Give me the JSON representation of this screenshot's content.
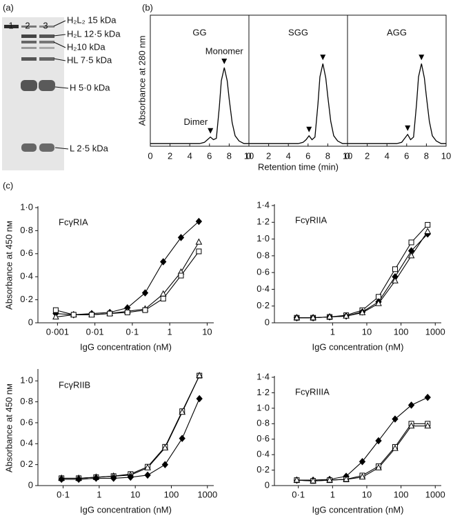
{
  "panel_labels": [
    "(a)",
    "(b)",
    "(c)"
  ],
  "gel": {
    "lanes": [
      "1",
      "2",
      "3"
    ],
    "bands": [
      "H₂L₂ 15 kDa",
      "H₂L 12·5 kDa",
      "H₂10 kDa",
      "HL 7·5 kDa",
      "H 5·0 kDa",
      "L 2·5 kDa"
    ]
  },
  "chart_data": [
    {
      "type": "line",
      "ylabel": "Absorbance at 280 nm",
      "xlabel": "Retention time (min)",
      "annotations": [
        "Dimer",
        "Monomer"
      ],
      "color": "#000000",
      "x": [
        0,
        1,
        2,
        3,
        4,
        5,
        5.5,
        5.8,
        6.1,
        6.4,
        6.7,
        7,
        7.2,
        7.5,
        7.8,
        8,
        8.3,
        8.6,
        9,
        9.5,
        10
      ],
      "xlim": [
        0,
        10
      ],
      "xticks": [
        0,
        2,
        4,
        6,
        8,
        10
      ],
      "ylim": [
        0,
        1
      ],
      "panels": [
        {
          "title": "GG",
          "values": [
            0.02,
            0.02,
            0.02,
            0.02,
            0.02,
            0.02,
            0.03,
            0.05,
            0.07,
            0.05,
            0.06,
            0.3,
            0.5,
            0.6,
            0.5,
            0.36,
            0.18,
            0.08,
            0.04,
            0.02,
            0.02
          ]
        },
        {
          "title": "SGG",
          "values": [
            0.02,
            0.02,
            0.02,
            0.02,
            0.02,
            0.02,
            0.03,
            0.05,
            0.08,
            0.05,
            0.07,
            0.32,
            0.53,
            0.63,
            0.52,
            0.38,
            0.19,
            0.08,
            0.04,
            0.02,
            0.02
          ]
        },
        {
          "title": "AGG",
          "values": [
            0.02,
            0.02,
            0.02,
            0.02,
            0.02,
            0.02,
            0.03,
            0.06,
            0.09,
            0.05,
            0.07,
            0.32,
            0.53,
            0.63,
            0.52,
            0.38,
            0.19,
            0.08,
            0.04,
            0.02,
            0.02
          ]
        }
      ]
    },
    {
      "type": "line",
      "title": "FcγRIA",
      "ylabel": "Absorbance at 450 nм",
      "xlabel": "IgG concentration (nM)",
      "xscale": "log",
      "x": [
        0.0009,
        0.0027,
        0.0082,
        0.025,
        0.074,
        0.22,
        0.67,
        2,
        6
      ],
      "xlim": [
        0.0003,
        15
      ],
      "xticks": [
        {
          "value": 0.001,
          "label": "0·001"
        },
        {
          "value": 0.01,
          "label": "0·01"
        },
        {
          "value": 0.1,
          "label": "0·1"
        },
        1,
        10
      ],
      "ylim": [
        0,
        1
      ],
      "yticks": [
        0,
        {
          "value": 0.2,
          "label": "0·2"
        },
        {
          "value": 0.4,
          "label": "0·4"
        },
        {
          "value": 0.6,
          "label": "0·6"
        },
        {
          "value": 0.8,
          "label": "0·8"
        },
        {
          "value": 1,
          "label": "1·0"
        }
      ],
      "series": [
        {
          "color": "#000000",
          "marker": "diamond",
          "filled": true,
          "values": [
            0.08,
            0.07,
            0.08,
            0.09,
            0.13,
            0.26,
            0.53,
            0.74,
            0.88
          ]
        },
        {
          "color": "#000000",
          "marker": "triangle",
          "filled": false,
          "values": [
            0.05,
            0.07,
            0.07,
            0.08,
            0.1,
            0.12,
            0.25,
            0.44,
            0.7
          ]
        },
        {
          "color": "#000000",
          "marker": "square",
          "filled": false,
          "values": [
            0.11,
            0.07,
            0.07,
            0.08,
            0.09,
            0.11,
            0.21,
            0.41,
            0.62
          ]
        }
      ]
    },
    {
      "type": "line",
      "title": "FcγRIIA",
      "xlabel": "IgG concentration (nM)",
      "xscale": "log",
      "x": [
        0.09,
        0.27,
        0.82,
        2.5,
        7.4,
        22,
        67,
        200,
        600
      ],
      "xlim": [
        0.02,
        1500
      ],
      "xticks": [
        1,
        10,
        100,
        1000
      ],
      "ylim": [
        0,
        1.4
      ],
      "yticks": [
        0,
        {
          "value": 0.2,
          "label": "0·2"
        },
        {
          "value": 0.4,
          "label": "0·4"
        },
        {
          "value": 0.6,
          "label": "0·6"
        },
        {
          "value": 0.8,
          "label": "0·8"
        },
        {
          "value": 1,
          "label": "1·0"
        },
        {
          "value": 1.2,
          "label": "1·2"
        },
        {
          "value": 1.4,
          "label": "1·4"
        }
      ],
      "series": [
        {
          "color": "#000000",
          "marker": "square",
          "filled": false,
          "values": [
            0.06,
            0.06,
            0.07,
            0.09,
            0.15,
            0.31,
            0.64,
            0.96,
            1.17
          ]
        },
        {
          "color": "#000000",
          "marker": "diamond",
          "filled": true,
          "values": [
            0.06,
            0.06,
            0.07,
            0.08,
            0.13,
            0.25,
            0.55,
            0.86,
            1.06
          ]
        },
        {
          "color": "#000000",
          "marker": "triangle",
          "filled": false,
          "values": [
            0.06,
            0.06,
            0.07,
            0.08,
            0.12,
            0.23,
            0.5,
            0.8,
            1.09
          ]
        }
      ]
    },
    {
      "type": "line",
      "title": "FcγRIIB",
      "ylabel": "Absorbance at 450 nм",
      "xlabel": "IgG concentration (nM)",
      "xscale": "log",
      "x": [
        0.09,
        0.27,
        0.82,
        2.5,
        7.4,
        22,
        67,
        200,
        600
      ],
      "xlim": [
        0.02,
        1500
      ],
      "xticks": [
        {
          "value": 0.1,
          "label": "0·1"
        },
        1,
        10,
        100,
        1000
      ],
      "ylim": [
        0,
        1.1
      ],
      "yticks": [
        0,
        {
          "value": 0.2,
          "label": "0·2"
        },
        {
          "value": 0.4,
          "label": "0·4"
        },
        {
          "value": 0.6,
          "label": "0·6"
        },
        {
          "value": 0.8,
          "label": "0·8"
        },
        {
          "value": 1,
          "label": "1·0"
        }
      ],
      "series": [
        {
          "color": "#000000",
          "marker": "square",
          "filled": false,
          "values": [
            0.07,
            0.07,
            0.08,
            0.09,
            0.11,
            0.18,
            0.37,
            0.71,
            1.05
          ]
        },
        {
          "color": "#000000",
          "marker": "triangle",
          "filled": false,
          "values": [
            0.07,
            0.07,
            0.08,
            0.09,
            0.1,
            0.17,
            0.36,
            0.7,
            1.05
          ]
        },
        {
          "color": "#000000",
          "marker": "diamond",
          "filled": true,
          "values": [
            0.06,
            0.06,
            0.07,
            0.07,
            0.08,
            0.1,
            0.2,
            0.45,
            0.83
          ]
        }
      ]
    },
    {
      "type": "line",
      "title": "FcγRIIIA",
      "xlabel": "IgG concentration (nM)",
      "xscale": "log",
      "x": [
        0.09,
        0.27,
        0.82,
        2.5,
        7.4,
        22,
        67,
        200,
        600
      ],
      "xlim": [
        0.02,
        1500
      ],
      "xticks": [
        {
          "value": 0.1,
          "label": "0·1"
        },
        1,
        10,
        100,
        1000
      ],
      "ylim": [
        0,
        1.4
      ],
      "yticks": [
        0,
        {
          "value": 0.2,
          "label": "0·2"
        },
        {
          "value": 0.4,
          "label": "0·4"
        },
        {
          "value": 0.6,
          "label": "0·6"
        },
        {
          "value": 0.8,
          "label": "0·8"
        },
        {
          "value": 1,
          "label": "1·0"
        },
        {
          "value": 1.2,
          "label": "1·2"
        },
        {
          "value": 1.4,
          "label": "1·4"
        }
      ],
      "series": [
        {
          "color": "#000000",
          "marker": "diamond",
          "filled": true,
          "values": [
            0.07,
            0.07,
            0.08,
            0.12,
            0.31,
            0.58,
            0.86,
            1.04,
            1.14
          ]
        },
        {
          "color": "#000000",
          "marker": "square",
          "filled": false,
          "values": [
            0.07,
            0.06,
            0.07,
            0.08,
            0.13,
            0.25,
            0.5,
            0.8,
            0.8
          ]
        },
        {
          "color": "#000000",
          "marker": "triangle",
          "filled": false,
          "values": [
            0.07,
            0.06,
            0.07,
            0.08,
            0.11,
            0.23,
            0.48,
            0.77,
            0.77
          ]
        }
      ]
    }
  ]
}
